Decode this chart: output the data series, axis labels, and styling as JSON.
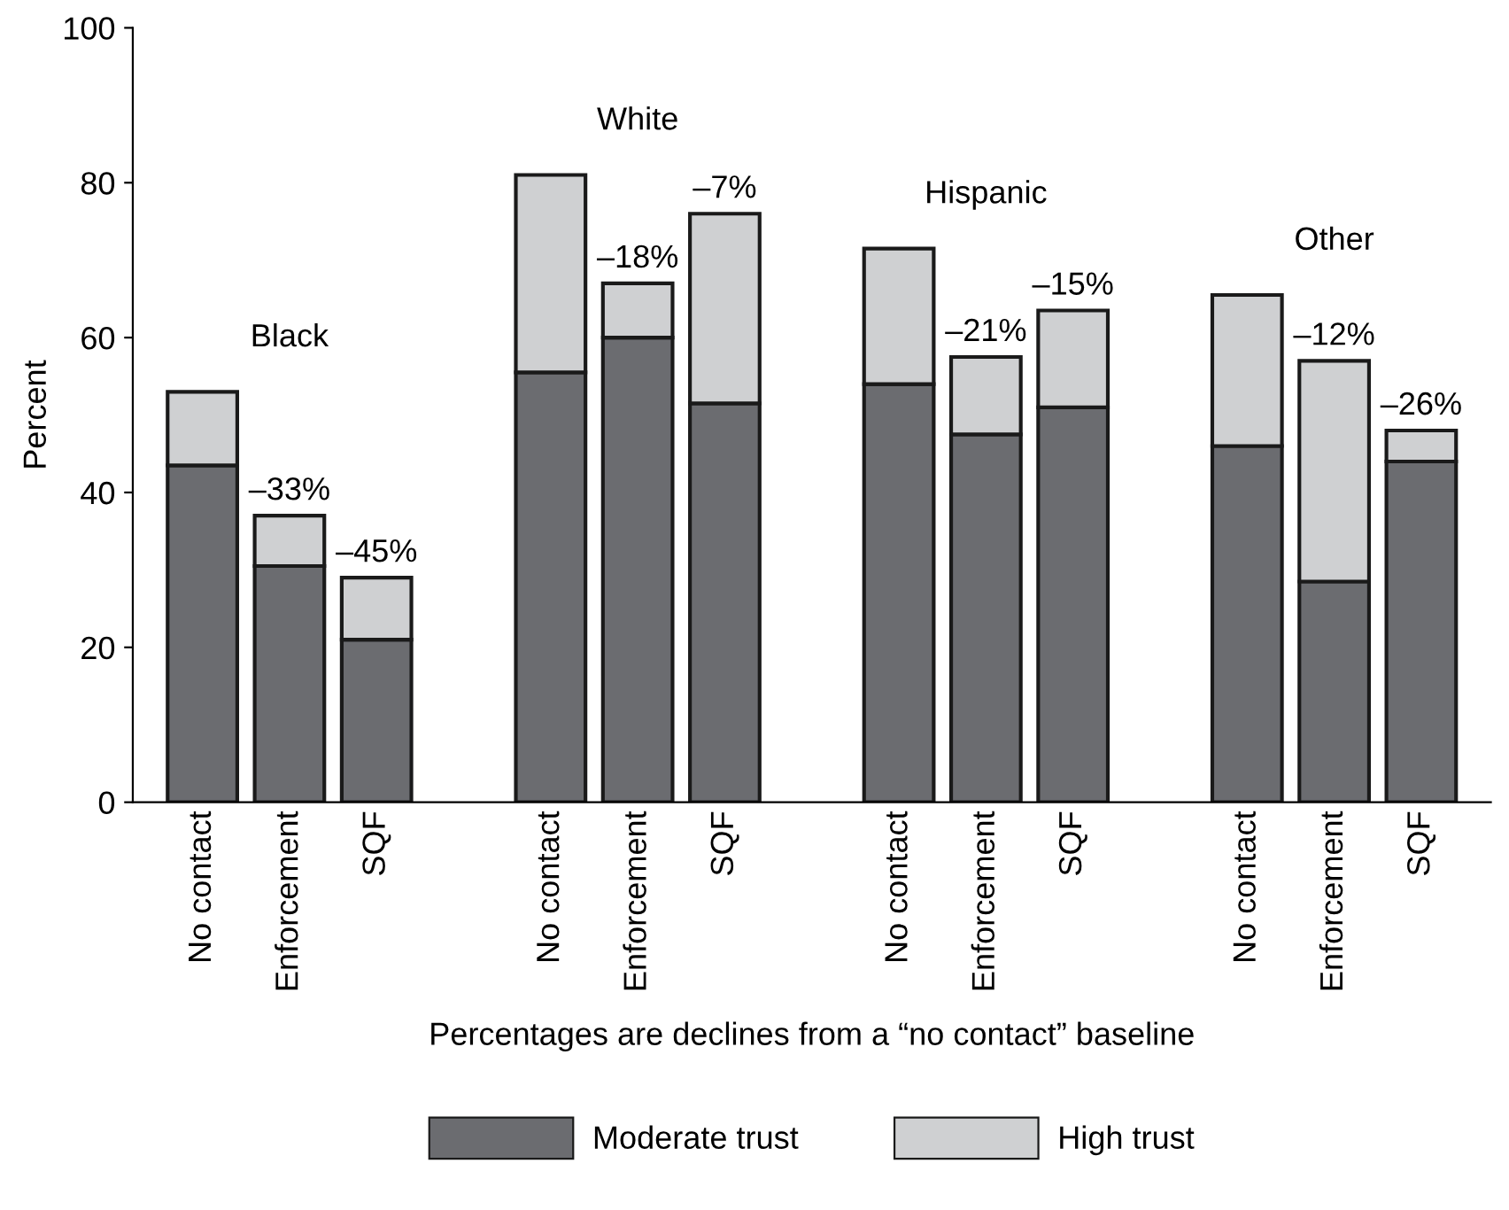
{
  "chart_data": {
    "type": "bar",
    "stacked": true,
    "ylabel": "Percent",
    "xlabel": "Percentages are declines from a “no contact” baseline",
    "categories": [
      "No contact",
      "Enforcement",
      "SQF",
      null,
      "No contact",
      "Enforcement",
      "SQF",
      null,
      "No contact",
      "Enforcement",
      "SQF",
      null,
      "No contact",
      "Enforcement",
      "SQF"
    ],
    "series": [
      {
        "name": "Moderate trust",
        "color": "#6b6c70",
        "values": [
          43.5,
          30.5,
          21,
          null,
          55.5,
          60,
          51.5,
          null,
          54,
          47.5,
          51,
          null,
          46,
          28.5,
          44
        ]
      },
      {
        "name": "High trust",
        "color": "#cfd0d2",
        "values": [
          9.5,
          6.5,
          8,
          null,
          25.5,
          7,
          24.5,
          null,
          17.5,
          10,
          12.5,
          null,
          19.5,
          28.5,
          4
        ]
      }
    ],
    "annotations": [
      "Black",
      "–33%",
      "–45%",
      "White",
      "–18%",
      "–7%",
      "Hispanic",
      "–21%",
      "–15%",
      "Other",
      "–12%",
      "–26%"
    ],
    "ylim": [
      0,
      100
    ],
    "yticks": [
      0,
      20,
      40,
      60,
      80,
      100
    ],
    "grid": false,
    "legend": "bottom"
  }
}
